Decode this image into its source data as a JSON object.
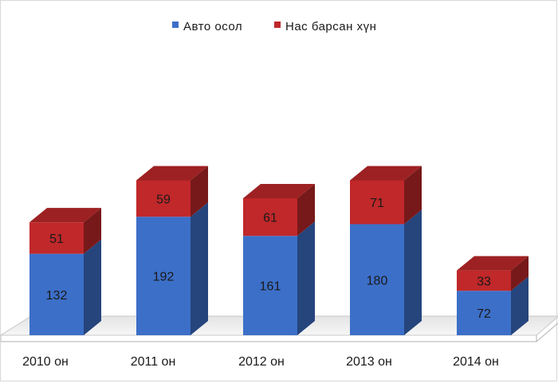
{
  "chart_data": {
    "type": "bar",
    "stacked": true,
    "style": "3d",
    "categories": [
      "2010 он",
      "2011 он",
      "2012 он",
      "2013 он",
      "2014 он"
    ],
    "series": [
      {
        "name": "Авто осол",
        "values": [
          132,
          192,
          161,
          180,
          72
        ],
        "color": "#3c6fc8"
      },
      {
        "name": "Нас барсан хүн",
        "values": [
          51,
          59,
          61,
          71,
          33
        ],
        "color": "#c0282a"
      }
    ],
    "legend_position": "top-center",
    "data_labels": true,
    "grid": false
  }
}
